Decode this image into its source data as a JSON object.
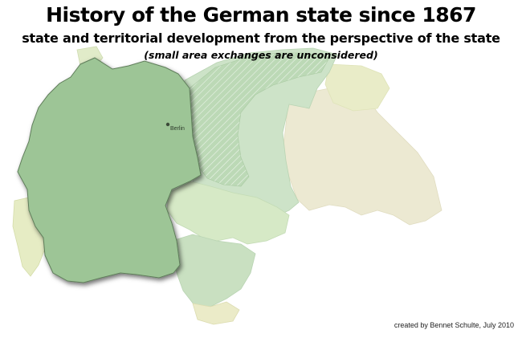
{
  "title": "History of the German state since 1867",
  "subtitle": "state and territorial development from the perspective of the state",
  "note": "(small area exchanges are unconsidered)",
  "city_label": "Berlin",
  "credit": "created by Bennet Schulte, July 2010",
  "colors": {
    "modern_germany": "#9dc596",
    "eastern_territories": "#cde3c8",
    "hatched_region": "#b9d8b3",
    "outer_pale_regions": "#ebebd6",
    "austria_region": "#d4e6c6",
    "alsace_lorraine": "#e6ecc4"
  }
}
